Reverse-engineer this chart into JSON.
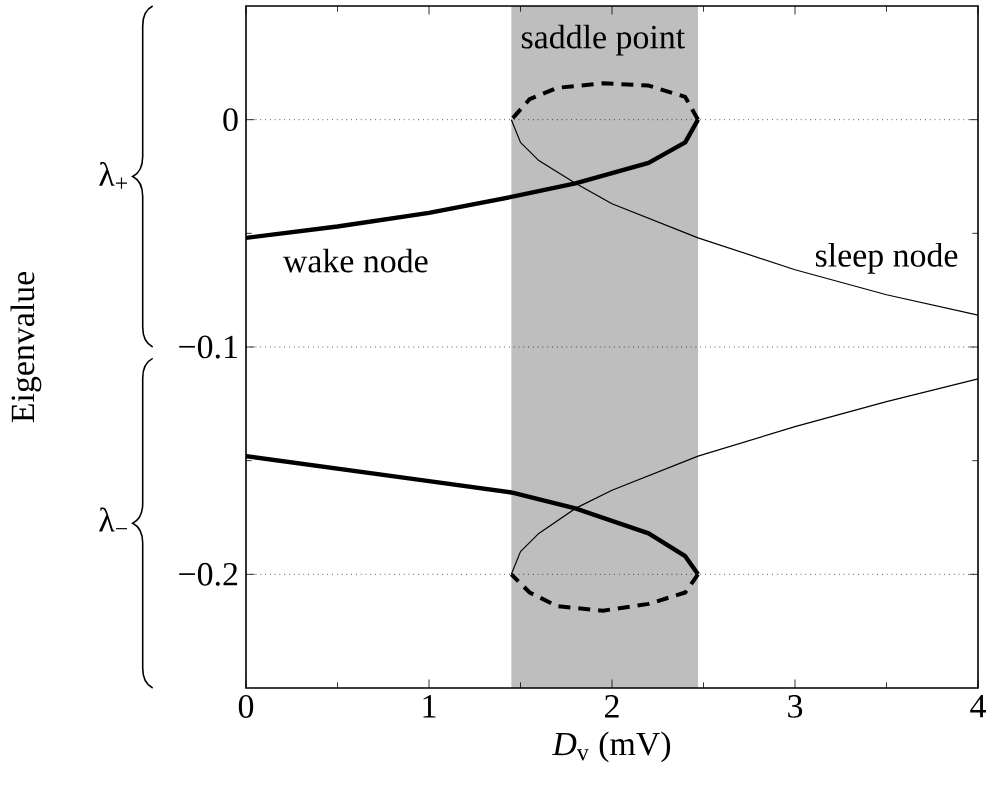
{
  "chart_data": {
    "type": "line",
    "xlabel": "*D*$_{v}$ (mV)",
    "ylabel": "Eigenvalue",
    "xlim": [
      0,
      4
    ],
    "ylim": [
      -0.25,
      0.05
    ],
    "xticks": [
      0,
      1,
      2,
      3,
      4
    ],
    "yticks": [
      {
        "value": -0.2,
        "label": "−0.2"
      },
      {
        "value": -0.1,
        "label": "−0.1"
      },
      0
    ],
    "series": [
      {
        "color": "#000000",
        "line_style": "solid",
        "x": [
          0,
          0.5,
          1,
          1.45,
          1.8,
          2.2,
          2.4,
          2.47
        ],
        "values": [
          -0.052,
          -0.047,
          -0.041,
          -0.034,
          -0.028,
          -0.019,
          -0.01,
          0
        ]
      },
      {
        "color": "#000000",
        "line_style": "dashed",
        "x": [
          2.47,
          2.4,
          2.2,
          1.95,
          1.7,
          1.55,
          1.45
        ],
        "values": [
          0,
          0.01,
          0.015,
          0.016,
          0.014,
          0.009,
          0
        ]
      },
      {
        "color": "#000000",
        "line_style": "solid",
        "x": [
          1.45,
          1.5,
          1.6,
          1.8,
          2.0,
          2.47,
          3,
          3.5,
          4
        ],
        "values": [
          0,
          -0.01,
          -0.018,
          -0.028,
          -0.037,
          -0.052,
          -0.066,
          -0.077,
          -0.086
        ]
      },
      {
        "color": "#000000",
        "line_style": "solid",
        "x": [
          0,
          1,
          1.45,
          1.8,
          2.2,
          2.4,
          2.47
        ],
        "values": [
          -0.148,
          -0.159,
          -0.164,
          -0.171,
          -0.182,
          -0.192,
          -0.2
        ]
      },
      {
        "color": "#000000",
        "line_style": "dashed",
        "x": [
          2.47,
          2.4,
          2.2,
          1.95,
          1.7,
          1.55,
          1.45
        ],
        "values": [
          -0.2,
          -0.208,
          -0.213,
          -0.216,
          -0.214,
          -0.208,
          -0.2
        ]
      },
      {
        "color": "#000000",
        "line_style": "solid",
        "x": [
          1.45,
          1.5,
          1.6,
          1.8,
          2.0,
          2.47,
          3,
          3.5,
          4
        ],
        "values": [
          -0.2,
          -0.19,
          -0.182,
          -0.171,
          -0.163,
          -0.148,
          -0.135,
          -0.124,
          -0.114
        ]
      }
    ],
    "ref_lines": [
      {
        "axis": "y",
        "value": 0,
        "line_style": "dotted"
      },
      {
        "axis": "y",
        "value": -0.1,
        "line_style": "dotted"
      },
      {
        "axis": "y",
        "value": -0.2,
        "line_style": "dotted"
      }
    ],
    "bands": [
      {
        "axis": "x",
        "from": 1.45,
        "to": 2.47,
        "color": "#bebebe"
      }
    ],
    "annotations": [
      "saddle point",
      "wake node",
      "sleep node",
      "λ$_{+}$",
      "λ$_{−}$"
    ]
  }
}
